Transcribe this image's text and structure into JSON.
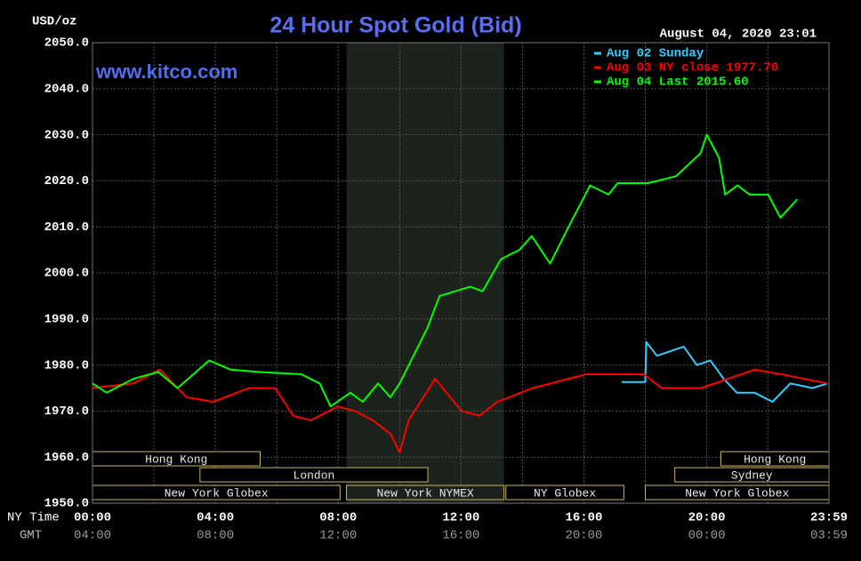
{
  "chart_data": {
    "type": "line",
    "title": "24 Hour Spot Gold (Bid)",
    "subtitle": "www.kitco.com",
    "ylabel": "USD/oz",
    "timestamp": "August 04, 2020 23:01",
    "xlabel": "NY Time",
    "x2label": "GMT",
    "xlim": [
      0,
      23.98
    ],
    "xticks": [
      {
        "value": 0,
        "label": "00:00"
      },
      {
        "value": 4,
        "label": "04:00"
      },
      {
        "value": 8,
        "label": "08:00"
      },
      {
        "value": 12,
        "label": "12:00"
      },
      {
        "value": 16,
        "label": "16:00"
      },
      {
        "value": 20,
        "label": "20:00"
      },
      {
        "value": 23.98,
        "label": "23:59"
      }
    ],
    "x2tick_labels": [
      "04:00",
      "08:00",
      "12:00",
      "16:00",
      "20:00",
      "00:00",
      "03:59"
    ],
    "xminor": [
      2,
      6,
      10,
      14,
      18,
      22
    ],
    "ylim": [
      1950,
      2050
    ],
    "yticks": [
      {
        "value": 1950,
        "label": "1950.0"
      },
      {
        "value": 1960,
        "label": "1960.0"
      },
      {
        "value": 1970,
        "label": "1970.0"
      },
      {
        "value": 1980,
        "label": "1980.0"
      },
      {
        "value": 1990,
        "label": "1990.0"
      },
      {
        "value": 2000,
        "label": "2000.0"
      },
      {
        "value": 2010,
        "label": "2010.0"
      },
      {
        "value": 2020,
        "label": "2020.0"
      },
      {
        "value": 2030,
        "label": "2030.0"
      },
      {
        "value": 2040,
        "label": "2040.0"
      },
      {
        "value": 2050,
        "label": "2050.0"
      }
    ],
    "grid": true,
    "series": [
      {
        "name": "Aug 02 Sunday",
        "color": "#33ccff",
        "x": [
          17.23,
          18.0,
          18.03,
          18.38,
          19.25,
          19.68,
          20.12,
          20.55,
          20.98,
          21.56,
          22.14,
          22.72,
          23.44,
          23.93
        ],
        "values": [
          1976.3,
          1976.3,
          1985,
          1982,
          1984,
          1980,
          1981,
          1977,
          1974,
          1974,
          1972,
          1976,
          1975,
          1976
        ]
      },
      {
        "name": "Aug 03 NY close 1977.70",
        "color": "#ff0000",
        "x": [
          0,
          1.33,
          2.2,
          3.06,
          3.93,
          5.09,
          5.95,
          6.53,
          7.11,
          7.98,
          8.55,
          9.13,
          9.71,
          10.0,
          10.29,
          11.16,
          12.02,
          12.6,
          13.18,
          14.34,
          15.49,
          16.07,
          16.94,
          17.95,
          18.53,
          19.83,
          20.69,
          21.56,
          22.43,
          23.93
        ],
        "values": [
          1975,
          1976,
          1979,
          1973,
          1972,
          1975,
          1975,
          1969,
          1968,
          1971,
          1970,
          1968,
          1965,
          1961,
          1968,
          1977,
          1970,
          1969,
          1972,
          1975,
          1977,
          1978,
          1978,
          1978,
          1975,
          1975,
          1977,
          1979,
          1978,
          1976
        ]
      },
      {
        "name": "Aug 04 Last 2015.60",
        "color": "#00ff00",
        "x": [
          0,
          0.46,
          1.33,
          2.14,
          2.77,
          3.8,
          4.5,
          5.4,
          6.8,
          7.4,
          7.75,
          8.4,
          8.8,
          9.3,
          9.7,
          10.0,
          10.9,
          11.3,
          12.3,
          12.7,
          13.3,
          13.9,
          14.3,
          14.9,
          15.5,
          16.2,
          16.8,
          17.1,
          18.1,
          19.0,
          19.8,
          20.0,
          20.4,
          20.6,
          21.0,
          21.4,
          22.0,
          22.4,
          22.95
        ],
        "values": [
          1976,
          1974,
          1977,
          1978.5,
          1975,
          1981,
          1979,
          1978.5,
          1978,
          1976,
          1971,
          1974,
          1972,
          1976,
          1973,
          1976,
          1988,
          1995,
          1997,
          1996,
          2003,
          2005,
          2008,
          2002,
          2010,
          2019,
          2017,
          2019.5,
          2019.5,
          2021,
          2026,
          2030,
          2025,
          2017,
          2019,
          2017,
          2017,
          2012,
          2016
        ]
      }
    ],
    "sessions": [
      {
        "label": "Hong Kong",
        "start": 0,
        "end": 5.46,
        "row": 0
      },
      {
        "label": "Hong Kong",
        "start": 20.46,
        "end": 23.98,
        "row": 0
      },
      {
        "label": "London",
        "start": 3.5,
        "end": 10.92,
        "row": 1
      },
      {
        "label": "Sydney",
        "start": 18.96,
        "end": 23.98,
        "row": 1
      },
      {
        "label": "New York Globex",
        "start": 0,
        "end": 8.06,
        "row": 2
      },
      {
        "label": "New York NYMEX",
        "start": 8.27,
        "end": 13.4,
        "row": 2,
        "highlight": true
      },
      {
        "label": "NY Globex",
        "start": 13.46,
        "end": 17.3,
        "row": 2
      },
      {
        "label": "New York Globex",
        "start": 18.0,
        "end": 23.98,
        "row": 2
      }
    ]
  }
}
